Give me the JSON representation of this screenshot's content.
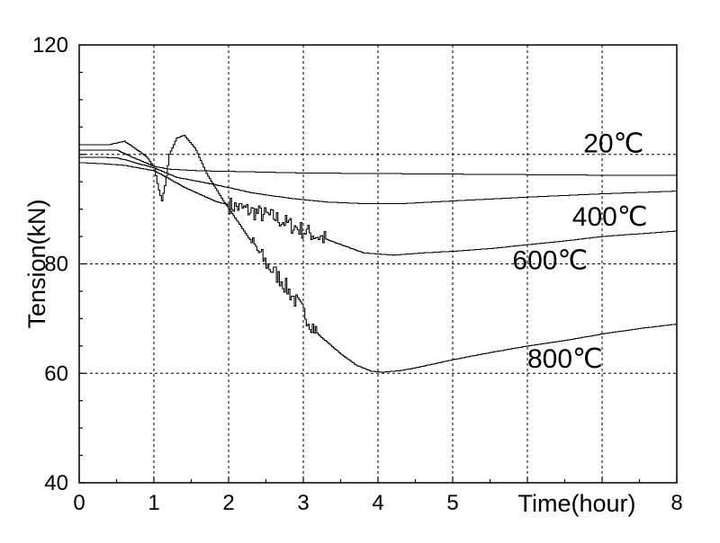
{
  "chart_data": {
    "type": "line",
    "xlabel": "Time(hour)",
    "ylabel": "Tension(kN)",
    "xlim": [
      0,
      8
    ],
    "ylim": [
      40,
      120
    ],
    "x_ticks": [
      0,
      1,
      2,
      3,
      4,
      5,
      8
    ],
    "x_tick_labels": [
      "0",
      "1",
      "2",
      "3",
      "4",
      "5",
      "8"
    ],
    "y_ticks": [
      40,
      60,
      80,
      100,
      120
    ],
    "y_tick_labels": [
      "40",
      "60",
      "80",
      "",
      "120"
    ],
    "grid": "dashed",
    "series": [
      {
        "name": "20℃",
        "x": [
          0,
          0.5,
          0.7,
          1.0,
          1.2,
          1.6,
          2.0,
          3.0,
          4.0,
          5.0,
          6.0,
          7.0,
          8.0
        ],
        "y": [
          100.8,
          100.8,
          99.5,
          97.8,
          97.3,
          97.0,
          96.9,
          96.6,
          96.5,
          96.4,
          96.3,
          96.2,
          96.2
        ]
      },
      {
        "name": "400℃",
        "x": [
          0,
          0.5,
          1.0,
          1.3,
          1.8,
          2.3,
          2.8,
          3.3,
          3.8,
          4.3,
          5.0,
          6.0,
          7.0,
          8.0
        ],
        "y": [
          99.5,
          99.4,
          97.5,
          95.8,
          94.5,
          93.0,
          92.0,
          91.3,
          91.0,
          91.0,
          91.5,
          92.2,
          92.8,
          93.3
        ]
      },
      {
        "name": "600℃",
        "x": [
          0,
          0.3,
          0.6,
          1.0,
          1.4,
          1.8,
          2.2,
          2.6,
          3.0,
          3.4,
          3.8,
          4.2,
          4.6,
          5.0,
          5.5,
          6.0,
          6.5,
          7.0,
          7.5,
          8.0
        ],
        "y": [
          98.5,
          98.3,
          98.0,
          97.0,
          94.0,
          91.5,
          90.0,
          88.5,
          86.0,
          84.0,
          82.0,
          81.6,
          82.0,
          82.3,
          82.8,
          83.5,
          84.2,
          85.0,
          85.5,
          86.0
        ],
        "noise_x": [
          2.0,
          3.3
        ]
      },
      {
        "name": "800℃",
        "x": [
          0,
          0.4,
          0.6,
          0.75,
          0.9,
          1.0,
          1.05,
          1.1,
          1.15,
          1.2,
          1.3,
          1.4,
          1.55,
          1.7,
          1.9,
          2.1,
          2.3,
          2.5,
          2.7,
          3.0,
          3.2,
          3.5,
          3.7,
          3.9,
          4.05,
          4.3,
          4.6,
          5.0,
          5.5,
          6.0,
          6.5,
          7.0,
          7.5,
          8.0
        ],
        "y": [
          101.8,
          101.8,
          102.4,
          101.0,
          99.5,
          97.5,
          94.0,
          91.5,
          95.0,
          100.0,
          103.0,
          103.5,
          101.0,
          96.5,
          92.0,
          88.0,
          84.0,
          80.0,
          77.0,
          71.0,
          67.0,
          63.5,
          61.5,
          60.4,
          60.2,
          60.5,
          61.3,
          62.5,
          63.8,
          65.0,
          66.0,
          67.2,
          68.2,
          69.0
        ],
        "noise_x": [
          2.3,
          3.2
        ]
      }
    ],
    "annotations": [
      {
        "text": "20℃",
        "x": 6.75,
        "y": 100.4
      },
      {
        "text": "400℃",
        "x": 6.6,
        "y": 87.0
      },
      {
        "text": "600℃",
        "x": 5.8,
        "y": 79.0
      },
      {
        "text": "800℃",
        "x": 6.0,
        "y": 61.0
      }
    ]
  }
}
